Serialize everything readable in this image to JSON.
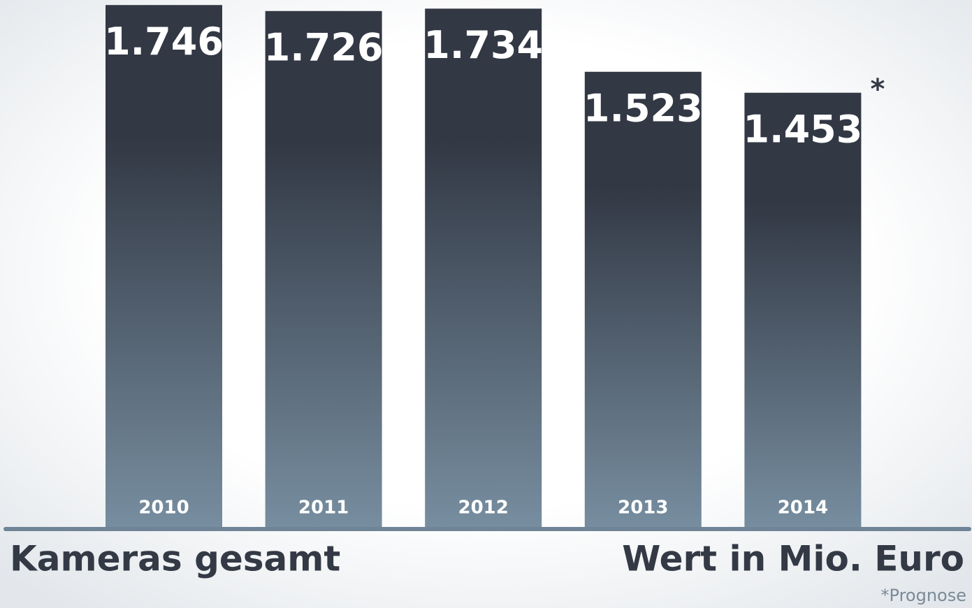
{
  "chart_data": {
    "type": "bar",
    "categories": [
      "2010",
      "2011",
      "2012",
      "2013",
      "2014"
    ],
    "values": [
      1746,
      1726,
      1734,
      1523,
      1453
    ],
    "value_labels": [
      "1.746",
      "1.726",
      "1.734",
      "1.523",
      "1.453"
    ],
    "ylim": [
      0,
      1750
    ],
    "color": [
      "#323844",
      "#778ea0"
    ],
    "annotations": [
      "Kameras gesamt",
      "Wert in Mio. Euro",
      "*",
      "*Prognose"
    ]
  }
}
